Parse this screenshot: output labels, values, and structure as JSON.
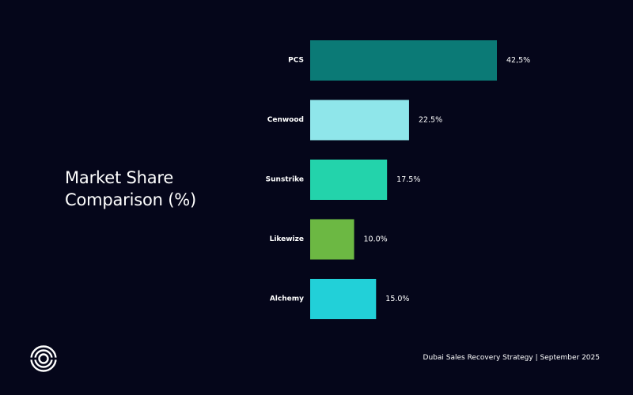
{
  "slide": {
    "title": "Market Share Comparison (%)",
    "footer": "Dubai Sales Recovery Strategy | September 2025",
    "logo_icon": "concentric-circle-logo-icon"
  },
  "chart_data": {
    "type": "bar",
    "orientation": "horizontal",
    "title": "Market Share Comparison (%)",
    "categories": [
      "PCS",
      "Cenwood",
      "Sunstrike",
      "Likewize",
      "Alchemy"
    ],
    "values": [
      42.5,
      22.5,
      17.5,
      10.0,
      15.0
    ],
    "value_labels": [
      "42,5%",
      "22.5%",
      "17.5%",
      "10.0%",
      "15.0%"
    ],
    "colors": [
      "#0b7a76",
      "#8fe6ea",
      "#23d3ab",
      "#6cb843",
      "#22d0d8"
    ],
    "xlim": [
      0,
      42.5
    ],
    "grid": false,
    "legend": "none"
  }
}
